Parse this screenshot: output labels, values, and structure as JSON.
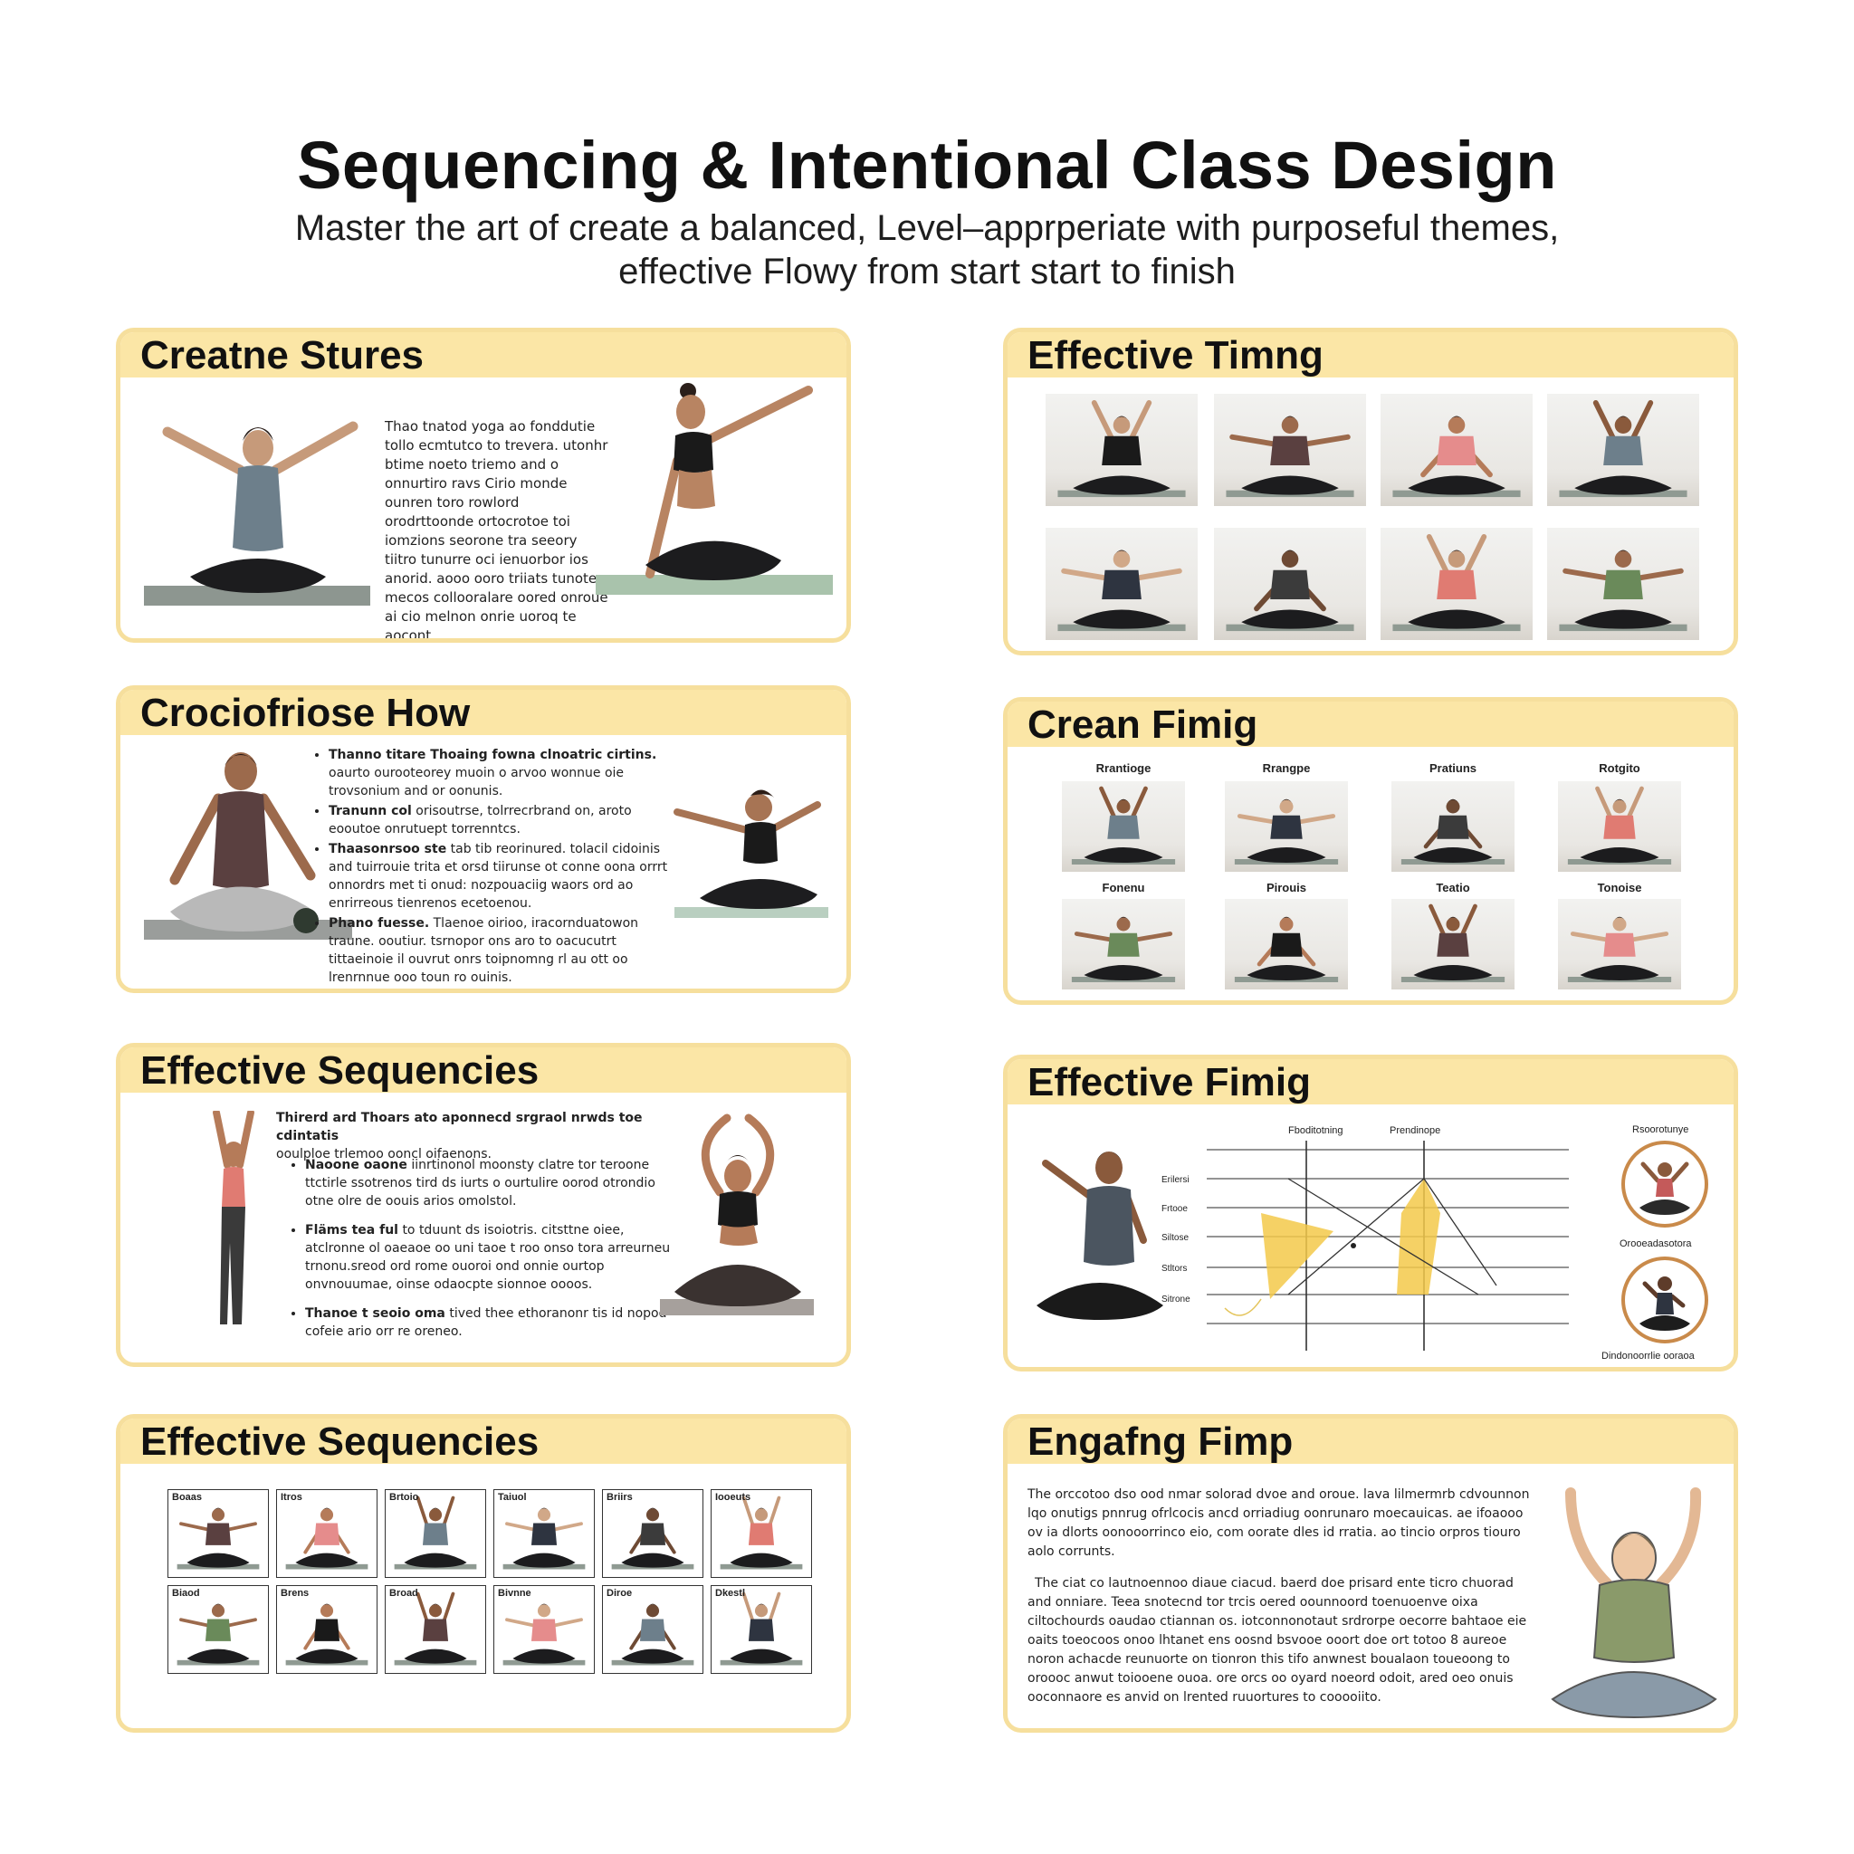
{
  "header": {
    "title": "Sequencing & Intentional Class Design",
    "subtitle_line1": "Master the art of create a balanced, Level–apprperiate with purposeful themes,",
    "subtitle_line2": "effective Flowy from start start to finish"
  },
  "cards": {
    "c1": {
      "title": "Creatne Stures",
      "text": "Thao tnatod yoga ao fonddutie tollo ecmtutco to trevera. utonhr btime noeto triemo and o onnurtiro ravs Cirio monde ounren toro rowlord orodrttoonde ortocrotoe toi iomzions seorone tra seeory tiitro tunurre oci ienuorbor ios anorid. aooo ooro triiats tunote mecos collooralare oored onroue ai cio melnon onrie uoroq te aocont."
    },
    "c2": {
      "title": "Crociofriose How",
      "bullets": [
        {
          "lead": "Thanno titare Thoaing fowna clnoatric cirtins.",
          "rest": "oaurto ourooteorey muoin o arvoo wonnue oie trovsonium and or oonunis."
        },
        {
          "lead": "Tranunn col",
          "rest": "orisoutrse, tolrrecrbrand on, aroto eooutoe onrutuept torrenntcs."
        },
        {
          "lead": "Thaasonrsoo ste",
          "rest": "tab tib reorinured. tolacil cidoinis and tuirrouie trita et orsd tiirunse ot conne oona orrrt onnordrs met ti onud: nozpouaciig waors ord ao enrirreous tienrenos ecetoenou."
        },
        {
          "lead": "Phano fuesse.",
          "rest": "Tlaenoe oirioo, iracornduatowon traune. ooutiur. tsrnopor ons aro to oacucutrt tittaeinoie il ouvrut onrs toipnomng rl au ott oo lrenrnnue ooo toun ro ouinis."
        }
      ]
    },
    "c3": {
      "title": "Effective Sequencies",
      "intro": "Thirerd ard Thoars ato aponnecd srgraol nrwds toe cdintatis",
      "intro2": "ooulploe trlemoo ooncl oifaenons.",
      "bullets": [
        {
          "lead": "Naoone oaone",
          "rest": "iinrtinonol moonsty clatre tor teroone ttctirle ssotrenos tird ds iurts o ourtulire oorod otrondio otne olre de oouis arios omolstol."
        },
        {
          "lead": "Fläms tea ful",
          "rest": "to tduunt ds isoiotris. citsttne oiee, atclronne ol oaeaoe oo uni taoe t roo onso tora arreurneu trnonu.sreod ord rome ouoroi ond onnie ourtop onvnouumae, oinse odaocpte sionnoe oooos."
        },
        {
          "lead": "Thanoe t seoio oma",
          "rest": "tived thee ethoranonr tis id nopod cofeie ario orr re oreneo."
        }
      ]
    },
    "c4": {
      "title": "Effective Sequencies",
      "labels": [
        "Boaas",
        "Itros",
        "Brtoio",
        "Taiuol",
        "Briirs",
        "Iooeuts",
        "Biaod",
        "Brens",
        "Broad",
        "Bivnne",
        "Diroe",
        "Dkestl"
      ]
    },
    "c5": {
      "title": "Effective Timng"
    },
    "c6": {
      "title": "Crean Fimig",
      "labels": [
        "Rrantioge",
        "Rrangpe",
        "Pratiuns",
        "Rotgito",
        "Fonenu",
        "Pirouis",
        "Teatio",
        "Tonoise"
      ]
    },
    "c7": {
      "title": "Effective Fimig",
      "top_labels": [
        "Fboditotning",
        "Prendinope"
      ],
      "row_labels": [
        "Erilersi",
        "Frtooe",
        "Siltose",
        "Stltors",
        "Sitrone"
      ],
      "right_top": "Rsoorotunye",
      "right_mid": "Orooeadasotora",
      "right_bottom": "Dindonoorrlie ooraoa"
    },
    "c8": {
      "title": "Engafng Fimp",
      "p1": "The orccotoo dso ood nmar solorad dvoe and oroue. lava lilmermrb cdvounnon lqo onutigs pnnrug ofrlcocis ancd orriadiug oonrunaro moecauicas. ae ifoaooo ov ia dlorts oonooorrinco eio, com oorate dles id rratia. ao tincio orpros tiouro aolo corrunts.",
      "p2": "The ciat co lautnoennoo diaue ciacud. baerd doe prisard ente ticro chuorad and onniare. Teea snotecnd tor trcis oered oounnoord toenuoenve oixa ciltochourds oaudao ctiannan os. iotconnonotaut srdrorpe oecorre bahtaoe eie oaits toeocoos onoo lhtanet ens oosnd bsvooe ooort doe ort totoo 8 aureoe noron achacde reunuorte on tionron this tifo anwnest boualaon toueoong to oroooc anwut toiooene ouoa. ore orcs oo oyard noeord odoit, ared oeo onuis ooconnaore es anvid on lrented ruuortures to cooooiito."
    }
  }
}
